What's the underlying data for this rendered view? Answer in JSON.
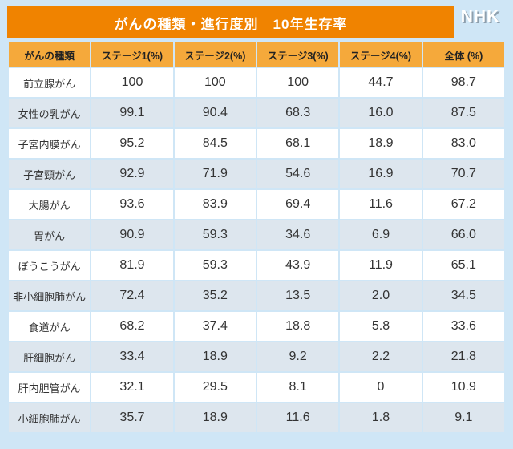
{
  "header": {
    "title": "がんの種類・進行度別　10年生存率",
    "logo": "NHK"
  },
  "colors": {
    "page-bg": "#cfe6f6",
    "title-bar-bg": "#f08300",
    "title-text": "#ffffff",
    "header-row-bg": "#f5a93b",
    "header-text": "#222222",
    "row-bg": "#ffffff",
    "row-alt-bg": "#dde6ee",
    "cell-text": "#333333"
  },
  "chart_data": {
    "type": "table",
    "title": "がんの種類・進行度別　10年生存率",
    "columns": [
      "がんの種類",
      "ステージ1(%)",
      "ステージ2(%)",
      "ステージ3(%)",
      "ステージ4(%)",
      "全体 (%)"
    ],
    "rows": [
      {
        "category": "前立腺がん",
        "values": [
          "100",
          "100",
          "100",
          "44.7",
          "98.7"
        ]
      },
      {
        "category": "女性の乳がん",
        "values": [
          "99.1",
          "90.4",
          "68.3",
          "16.0",
          "87.5"
        ]
      },
      {
        "category": "子宮内膜がん",
        "values": [
          "95.2",
          "84.5",
          "68.1",
          "18.9",
          "83.0"
        ]
      },
      {
        "category": "子宮頸がん",
        "values": [
          "92.9",
          "71.9",
          "54.6",
          "16.9",
          "70.7"
        ]
      },
      {
        "category": "大腸がん",
        "values": [
          "93.6",
          "83.9",
          "69.4",
          "11.6",
          "67.2"
        ]
      },
      {
        "category": "胃がん",
        "values": [
          "90.9",
          "59.3",
          "34.6",
          "6.9",
          "66.0"
        ]
      },
      {
        "category": "ぼうこうがん",
        "values": [
          "81.9",
          "59.3",
          "43.9",
          "11.9",
          "65.1"
        ]
      },
      {
        "category": "非小細胞肺がん",
        "values": [
          "72.4",
          "35.2",
          "13.5",
          "2.0",
          "34.5"
        ]
      },
      {
        "category": "食道がん",
        "values": [
          "68.2",
          "37.4",
          "18.8",
          "5.8",
          "33.6"
        ]
      },
      {
        "category": "肝細胞がん",
        "values": [
          "33.4",
          "18.9",
          "9.2",
          "2.2",
          "21.8"
        ]
      },
      {
        "category": "肝内胆管がん",
        "values": [
          "32.1",
          "29.5",
          "8.1",
          "0",
          "10.9"
        ]
      },
      {
        "category": "小細胞肺がん",
        "values": [
          "35.7",
          "18.9",
          "11.6",
          "1.8",
          "9.1"
        ]
      }
    ]
  }
}
